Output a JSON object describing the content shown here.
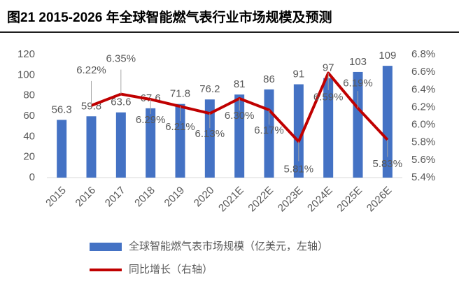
{
  "chart_data": {
    "type": "bar-line",
    "title": "图21 2015-2026 年全球智能燃气表行业市场规模及预测",
    "categories": [
      "2015",
      "2016",
      "2017",
      "2018",
      "2019",
      "2020",
      "2021E",
      "2022E",
      "2023E",
      "2024E",
      "2025E",
      "2026E"
    ],
    "series": [
      {
        "name": "全球智能燃气表市场规模（亿美元，左轴）",
        "type": "bar",
        "color": "#4472c4",
        "values": [
          56.3,
          59.8,
          63.6,
          67.6,
          71.8,
          76.2,
          81,
          86,
          91,
          97,
          103,
          109
        ]
      },
      {
        "name": "同比增长（右轴）",
        "type": "line",
        "axis": "y2",
        "color": "#c00000",
        "values": [
          null,
          6.22,
          6.35,
          6.29,
          6.21,
          6.13,
          6.3,
          6.17,
          5.81,
          6.59,
          6.19,
          5.83
        ],
        "value_labels": [
          null,
          "6.22%",
          "6.35%",
          "6.29%",
          "6.21%",
          "6.13%",
          "6.30%",
          "6.17%",
          "5.81%",
          "6.59%",
          "6.19%",
          "5.83%"
        ]
      }
    ],
    "ylim": [
      0,
      120
    ],
    "yticks": [
      0,
      20,
      40,
      60,
      80,
      100,
      120
    ],
    "y2lim": [
      5.4,
      6.8
    ],
    "y2ticks": [
      {
        "value": 5.4,
        "label": "5.4%"
      },
      {
        "value": 5.6,
        "label": "5.6%"
      },
      {
        "value": 5.8,
        "label": "5.8%"
      },
      {
        "value": 6.0,
        "label": "6.0%"
      },
      {
        "value": 6.2,
        "label": "6.2%"
      },
      {
        "value": 6.4,
        "label": "6.4%"
      },
      {
        "value": 6.6,
        "label": "6.6%"
      },
      {
        "value": 6.8,
        "label": "6.8%"
      }
    ],
    "legend": "bottom"
  }
}
